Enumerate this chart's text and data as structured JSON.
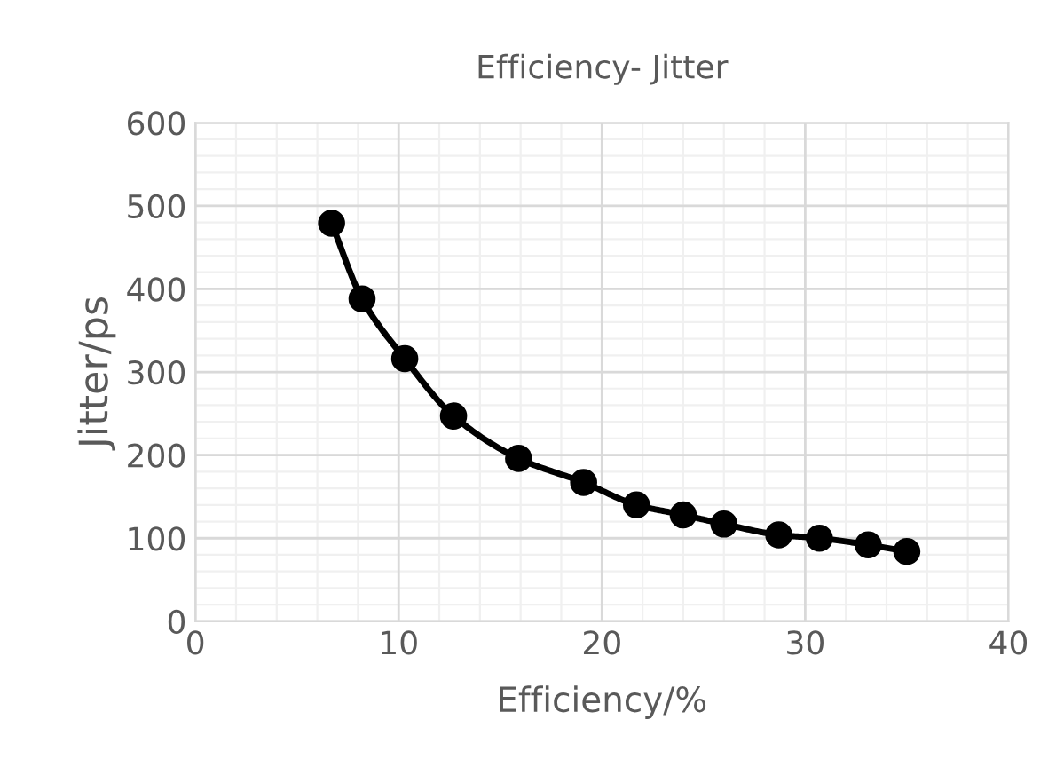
{
  "chart_data": {
    "type": "line",
    "title": "Efficiency- Jitter",
    "xlabel": "Efficiency/%",
    "ylabel": "Jitter/ps",
    "x": [
      6.7,
      8.2,
      10.3,
      12.7,
      15.9,
      19.1,
      21.7,
      24.0,
      26.0,
      28.7,
      30.7,
      33.1,
      35.0
    ],
    "series": [
      {
        "color": "#000000",
        "values": [
          479,
          388,
          316,
          247,
          196,
          167,
          140,
          128,
          117,
          104,
          100,
          92,
          84
        ]
      }
    ],
    "xlim": [
      0,
      40
    ],
    "xticks": [
      0,
      10,
      20,
      30,
      40
    ],
    "ylim": [
      0,
      600
    ],
    "yticks": [
      0,
      100,
      200,
      300,
      400,
      500,
      600
    ],
    "grid": true,
    "marker": "circle",
    "line_style": "solid",
    "legend": false
  }
}
